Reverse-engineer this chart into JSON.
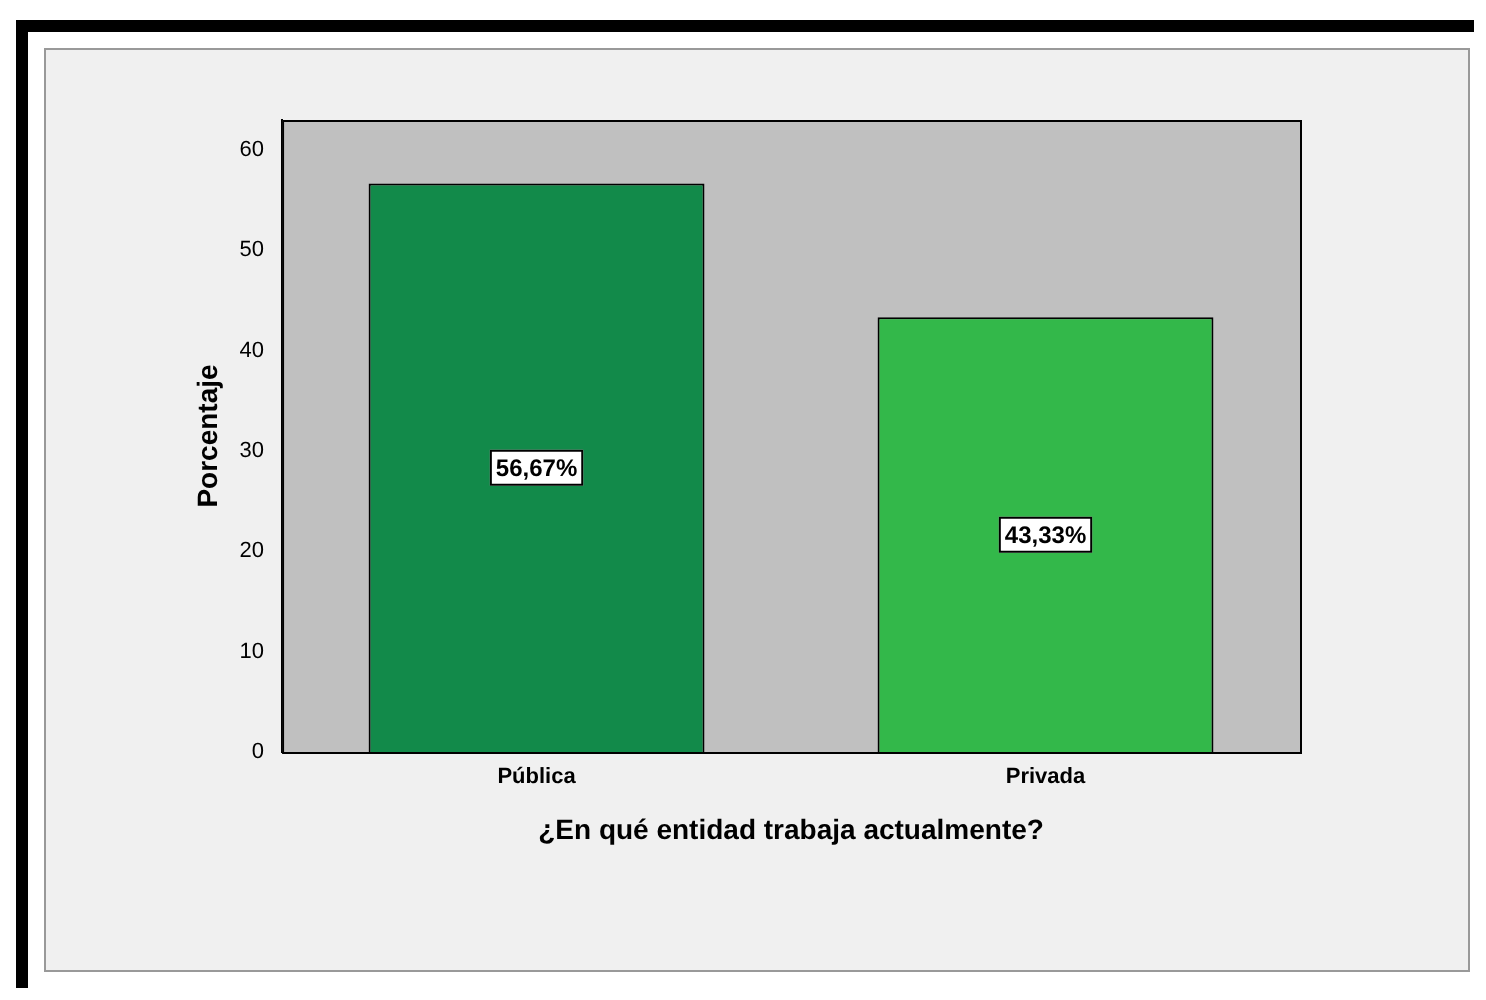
{
  "chart_data": {
    "type": "bar",
    "xlabel": "¿En qué entidad trabaja actualmente?",
    "ylabel": "Porcentaje",
    "categories": [
      "Pública",
      "Privada"
    ],
    "values": [
      56.67,
      43.33
    ],
    "colors": [
      "#128a4a",
      "#33b84a"
    ],
    "value_labels": [
      "56,67%",
      "43,33%"
    ],
    "ylim": [
      0,
      63
    ],
    "yticks": [
      0,
      10,
      20,
      30,
      40,
      50,
      60
    ],
    "grid": false,
    "legend": false
  }
}
